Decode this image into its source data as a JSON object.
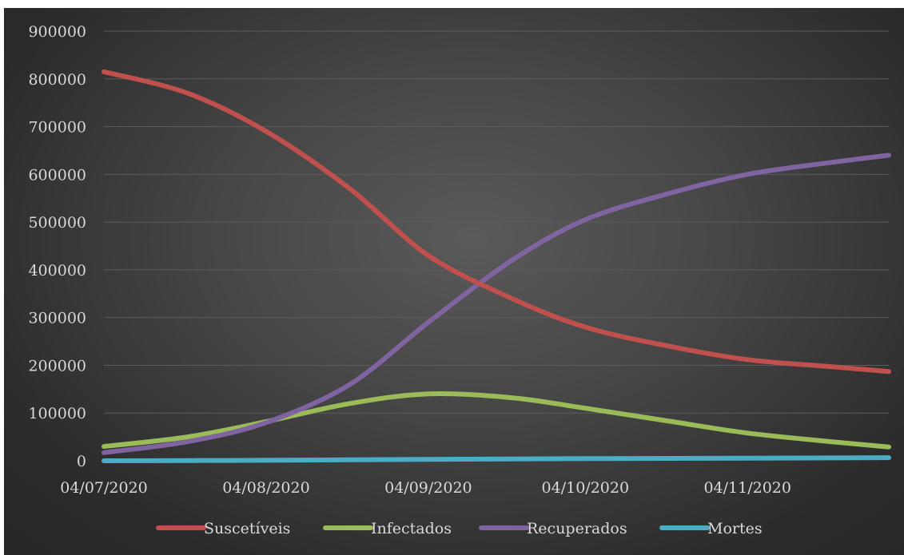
{
  "chart_data": {
    "type": "line",
    "x_ticks": [
      "04/07/2020",
      "04/08/2020",
      "04/09/2020",
      "04/10/2020",
      "04/11/2020"
    ],
    "x": [
      "04/07/2020",
      "20/07/2020",
      "04/08/2020",
      "20/08/2020",
      "04/09/2020",
      "20/09/2020",
      "04/10/2020",
      "20/10/2020",
      "04/11/2020",
      "20/11/2020",
      "01/12/2020"
    ],
    "xlim": [
      "04/07/2020",
      "01/12/2020"
    ],
    "ylim": [
      0,
      900000
    ],
    "y_ticks": [
      "0",
      "100000",
      "200000",
      "300000",
      "400000",
      "500000",
      "600000",
      "700000",
      "800000",
      "900000"
    ],
    "grid": true,
    "legend": "bottom",
    "series": [
      {
        "name": "Suscetíveis",
        "color": "#c0504d",
        "values": [
          815000,
          770000,
          690000,
          570000,
          430000,
          340000,
          280000,
          240000,
          212000,
          197000,
          187000
        ]
      },
      {
        "name": "Infectados",
        "color": "#9bbb59",
        "values": [
          30000,
          50000,
          82000,
          120000,
          140000,
          132000,
          110000,
          83000,
          58000,
          40000,
          29000
        ]
      },
      {
        "name": "Recuperados",
        "color": "#8064a2",
        "values": [
          17000,
          40000,
          80000,
          160000,
          290000,
          420000,
          505000,
          560000,
          600000,
          625000,
          640000
        ]
      },
      {
        "name": "Mortes",
        "color": "#4bacc6",
        "values": [
          0,
          500,
          1000,
          2000,
          3000,
          3800,
          4500,
          5000,
          5500,
          6000,
          6500
        ]
      }
    ]
  }
}
